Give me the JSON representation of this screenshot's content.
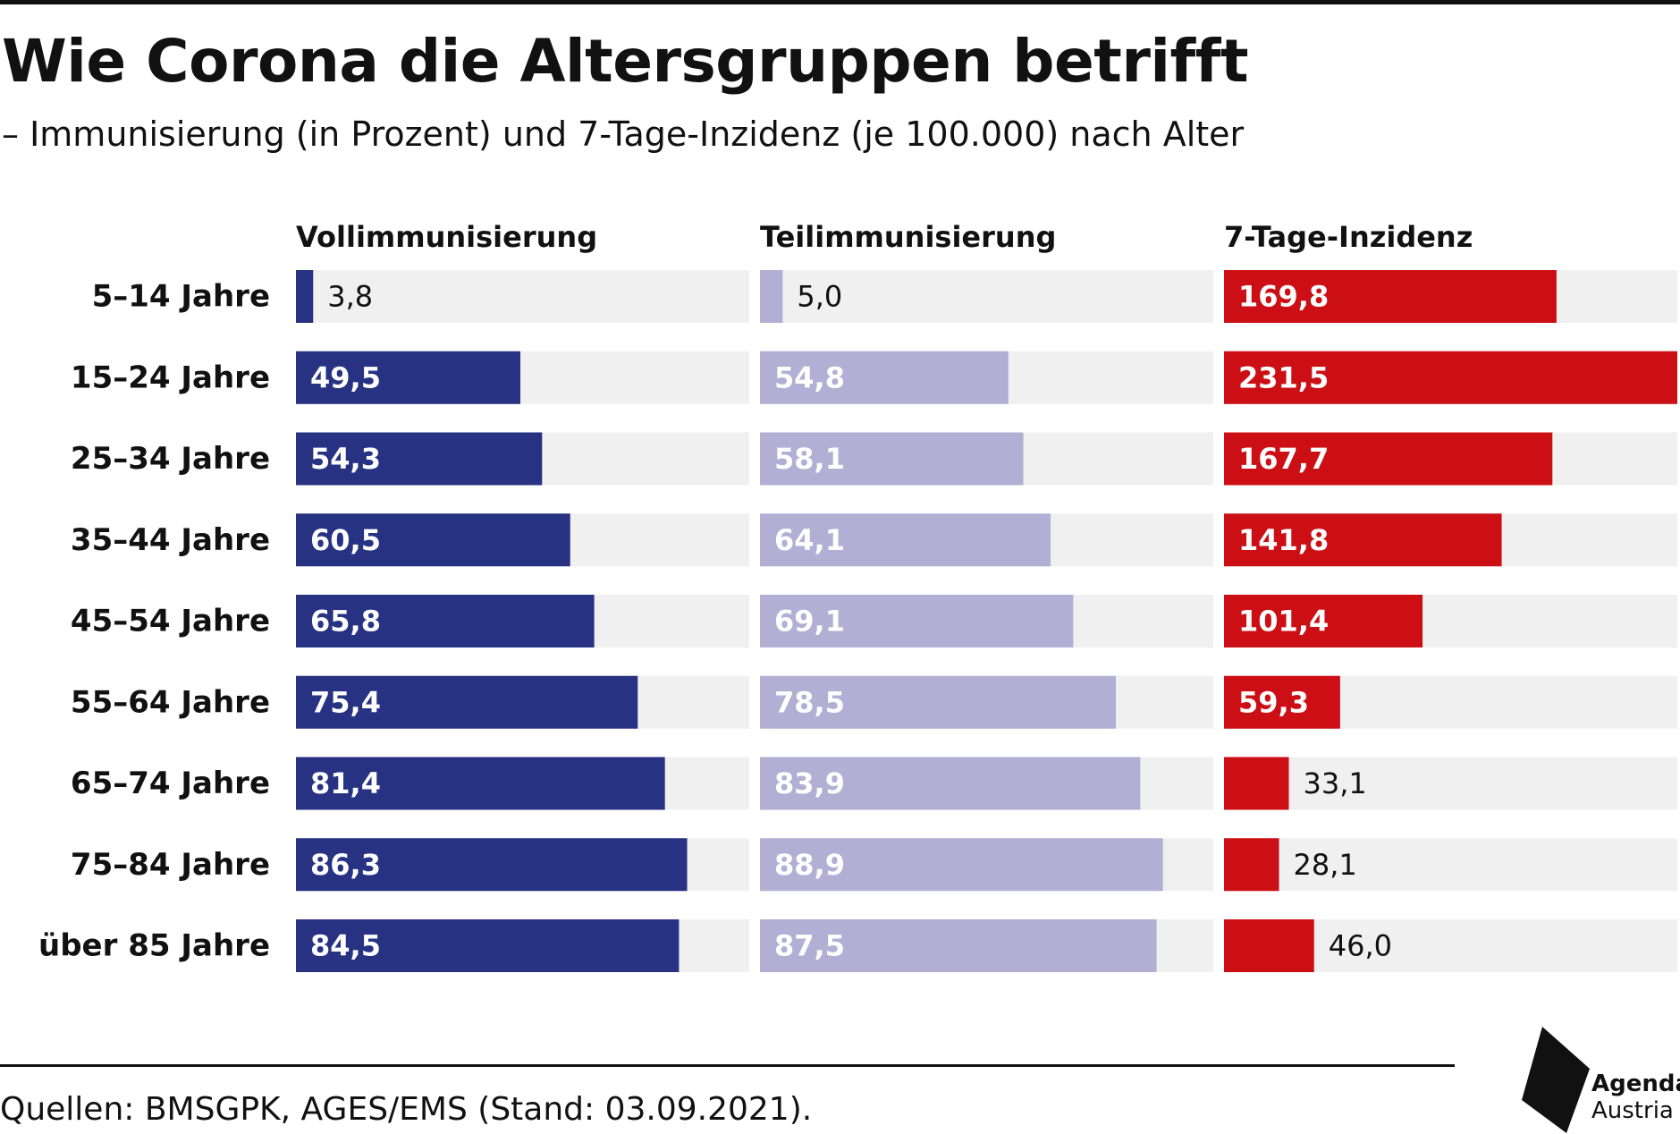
{
  "title": "Wie Corona die Altersgruppen betrifft",
  "subtitle": "– Immunisierung (in Prozent) und 7-Tage-Inzidenz (je 100.000) nach Alter",
  "source": "Quellen: BMSGPK, AGES/EMS (Stand: 03.09.2021).",
  "logo": {
    "line1": "Agenda",
    "line2": "Austria"
  },
  "colors": {
    "background_track": "#f0f0f0",
    "voll": "#283283",
    "teil": "#b3afd4",
    "inzidenz": "#cc0f14",
    "label_inside": "#ffffff",
    "label_outside": "#111111"
  },
  "chart_data": {
    "type": "bar",
    "categories": [
      "5–14 Jahre",
      "15–24 Jahre",
      "25–34 Jahre",
      "35–44 Jahre",
      "45–54 Jahre",
      "55–64 Jahre",
      "65–74 Jahre",
      "75–84 Jahre",
      "über 85 Jahre"
    ],
    "series": [
      {
        "name": "Vollimmunisierung",
        "values": [
          3.8,
          49.5,
          54.3,
          60.5,
          65.8,
          75.4,
          81.4,
          86.3,
          84.5
        ],
        "labels": [
          "3,8",
          "49,5",
          "54,3",
          "60,5",
          "65,8",
          "75,4",
          "81,4",
          "86,3",
          "84,5"
        ],
        "max": 100,
        "color_key": "voll"
      },
      {
        "name": "Teilimmunisierung",
        "values": [
          5.0,
          54.8,
          58.1,
          64.1,
          69.1,
          78.5,
          83.9,
          88.9,
          87.5
        ],
        "labels": [
          "5,0",
          "54,8",
          "58,1",
          "64,1",
          "69,1",
          "78,5",
          "83,9",
          "88,9",
          "87,5"
        ],
        "max": 100,
        "color_key": "teil"
      },
      {
        "name": "7-Tage-Inzidenz",
        "values": [
          169.8,
          231.5,
          167.7,
          141.8,
          101.4,
          59.3,
          33.1,
          28.1,
          46.0
        ],
        "labels": [
          "169,8",
          "231,5",
          "167,7",
          "141,8",
          "101,4",
          "59,3",
          "33,1",
          "28,1",
          "46,0"
        ],
        "max": 231.5,
        "color_key": "inzidenz"
      }
    ],
    "orientation": "horizontal",
    "grid": false,
    "legend": "none"
  }
}
